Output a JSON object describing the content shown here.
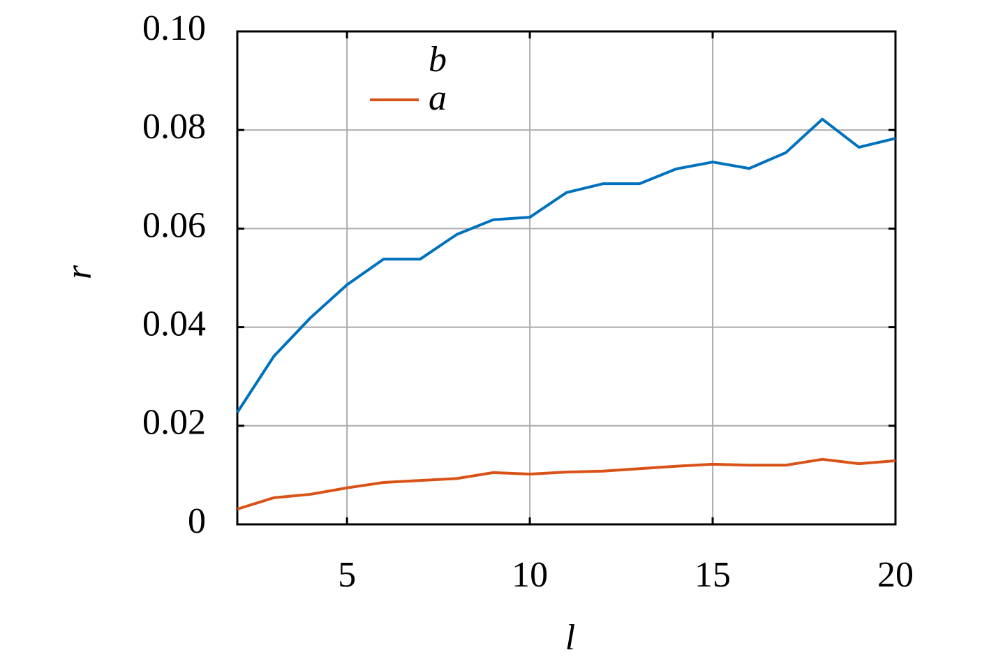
{
  "chart_data": {
    "type": "line",
    "x_label": "l",
    "y_label": "r",
    "x": [
      2,
      3,
      4,
      5,
      6,
      7,
      8,
      9,
      10,
      11,
      12,
      13,
      14,
      15,
      16,
      17,
      18,
      19,
      20
    ],
    "series": [
      {
        "name": "b",
        "color": "#0072bd",
        "legend_line": false,
        "values": [
          0.0227,
          0.0341,
          0.0419,
          0.0486,
          0.0538,
          0.0538,
          0.0588,
          0.0618,
          0.0623,
          0.0673,
          0.0691,
          0.0691,
          0.0721,
          0.0735,
          0.0722,
          0.0754,
          0.0822,
          0.0765,
          0.0783
        ]
      },
      {
        "name": "a",
        "color": "#d95319",
        "legend_line": true,
        "values": [
          0.0031,
          0.0054,
          0.0061,
          0.0074,
          0.0085,
          0.0089,
          0.0093,
          0.0105,
          0.0102,
          0.0106,
          0.0108,
          0.0113,
          0.0118,
          0.0122,
          0.012,
          0.012,
          0.0132,
          0.0123,
          0.0129
        ]
      }
    ],
    "xlim": [
      2,
      20
    ],
    "xticks": [
      5,
      10,
      15,
      20
    ],
    "ylim": [
      0,
      0.1
    ],
    "yticks": [
      0,
      0.02,
      0.04,
      0.06,
      0.08,
      {
        "value": 0.1,
        "label": "0.10"
      }
    ],
    "grid": true,
    "legend": "top-left"
  }
}
